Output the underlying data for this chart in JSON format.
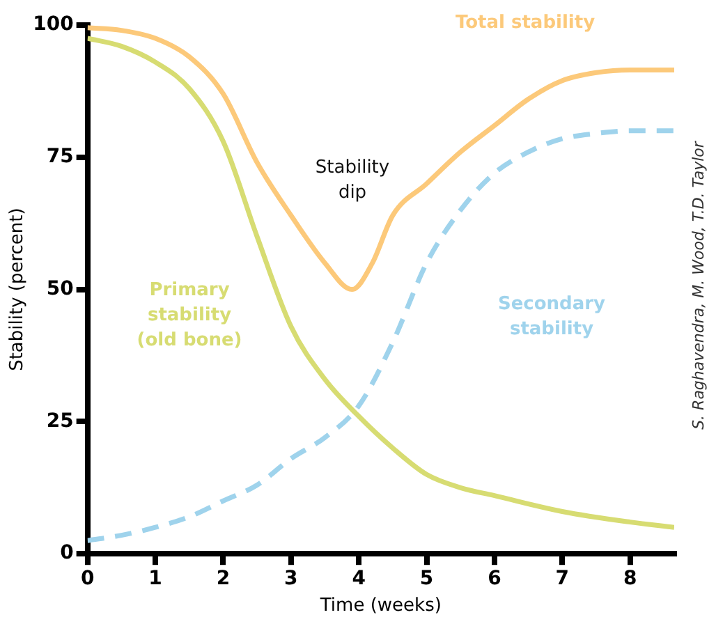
{
  "chart_data": {
    "type": "line",
    "xlabel": "Time (weeks)",
    "ylabel": "Stability (percent)",
    "xlim": [
      0,
      8.65
    ],
    "xticks": [
      0,
      1,
      2,
      3,
      4,
      5,
      6,
      7,
      8
    ],
    "ylim": [
      0,
      100
    ],
    "yticks": [
      0,
      25,
      50,
      75,
      100
    ],
    "grid": false,
    "legend": false,
    "marker": "none",
    "series": [
      {
        "name": "Total stability",
        "color": "#fcc97a",
        "line_style": "solid",
        "x": [
          0,
          0.5,
          1,
          1.5,
          2,
          2.5,
          3,
          3.5,
          3.9,
          4.2,
          4.5,
          5,
          5.5,
          6,
          6.5,
          7,
          7.5,
          8,
          8.65
        ],
        "values": [
          99.5,
          99,
          97.5,
          94,
          87,
          74,
          64,
          55,
          50,
          55,
          64,
          70,
          76,
          81,
          86,
          89.5,
          91,
          91.5,
          91.5
        ]
      },
      {
        "name": "Primary stability (old bone)",
        "color": "#d7dc72",
        "line_style": "solid",
        "x": [
          0,
          0.5,
          1,
          1.5,
          2,
          2.5,
          3,
          3.5,
          4,
          4.5,
          5,
          5.5,
          6,
          7,
          8,
          8.65
        ],
        "values": [
          97.5,
          96,
          93,
          88,
          78,
          60,
          43,
          33,
          26,
          20,
          15,
          12.5,
          11,
          8,
          6,
          5
        ]
      },
      {
        "name": "Secondary stability",
        "color": "#9fd3ec",
        "line_style": "dashed",
        "x": [
          0,
          0.5,
          1,
          1.5,
          2,
          2.5,
          3,
          3.5,
          4,
          4.5,
          5,
          5.5,
          6,
          6.5,
          7,
          7.5,
          8,
          8.65
        ],
        "values": [
          2.5,
          3.5,
          5,
          7,
          10,
          13,
          18,
          22,
          28,
          40,
          55,
          65,
          72,
          76,
          78.5,
          79.5,
          80,
          80
        ]
      }
    ],
    "annotations": [
      "Stability dip",
      "S. Raghavendra, M. Wood, T.D. Taylor"
    ]
  }
}
